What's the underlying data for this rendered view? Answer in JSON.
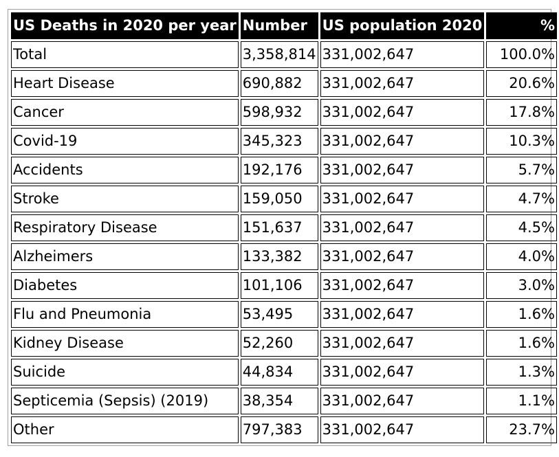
{
  "table": {
    "headers": [
      "US Deaths in 2020 per year",
      "Number",
      "US population 2020",
      "%"
    ],
    "rows": [
      {
        "cause": "Total",
        "number": "3,358,814",
        "population": "331,002,647",
        "percent": "100.0%"
      },
      {
        "cause": "Heart Disease",
        "number": "690,882",
        "population": "331,002,647",
        "percent": "20.6%"
      },
      {
        "cause": "Cancer",
        "number": "598,932",
        "population": "331,002,647",
        "percent": "17.8%"
      },
      {
        "cause": "Covid-19",
        "number": "345,323",
        "population": "331,002,647",
        "percent": "10.3%"
      },
      {
        "cause": "Accidents",
        "number": "192,176",
        "population": "331,002,647",
        "percent": "5.7%"
      },
      {
        "cause": "Stroke",
        "number": "159,050",
        "population": "331,002,647",
        "percent": "4.7%"
      },
      {
        "cause": "Respiratory Disease",
        "number": "151,637",
        "population": "331,002,647",
        "percent": "4.5%"
      },
      {
        "cause": "Alzheimers",
        "number": "133,382",
        "population": "331,002,647",
        "percent": "4.0%"
      },
      {
        "cause": "Diabetes",
        "number": "101,106",
        "population": "331,002,647",
        "percent": "3.0%"
      },
      {
        "cause": "Flu and Pneumonia",
        "number": "53,495",
        "population": "331,002,647",
        "percent": "1.6%"
      },
      {
        "cause": "Kidney Disease",
        "number": "52,260",
        "population": "331,002,647",
        "percent": "1.6%"
      },
      {
        "cause": "Suicide",
        "number": "44,834",
        "population": "331,002,647",
        "percent": "1.3%"
      },
      {
        "cause": "Septicemia (Sepsis) (2019)",
        "number": "38,354",
        "population": "331,002,647",
        "percent": "1.1%"
      },
      {
        "cause": "Other",
        "number": "797,383",
        "population": "331,002,647",
        "percent": "23.7%"
      }
    ]
  },
  "colors": {
    "header_background": "#000000",
    "header_text": "#ffffff",
    "cell_border": "#000000",
    "outer_border": "#a0a0a0"
  }
}
